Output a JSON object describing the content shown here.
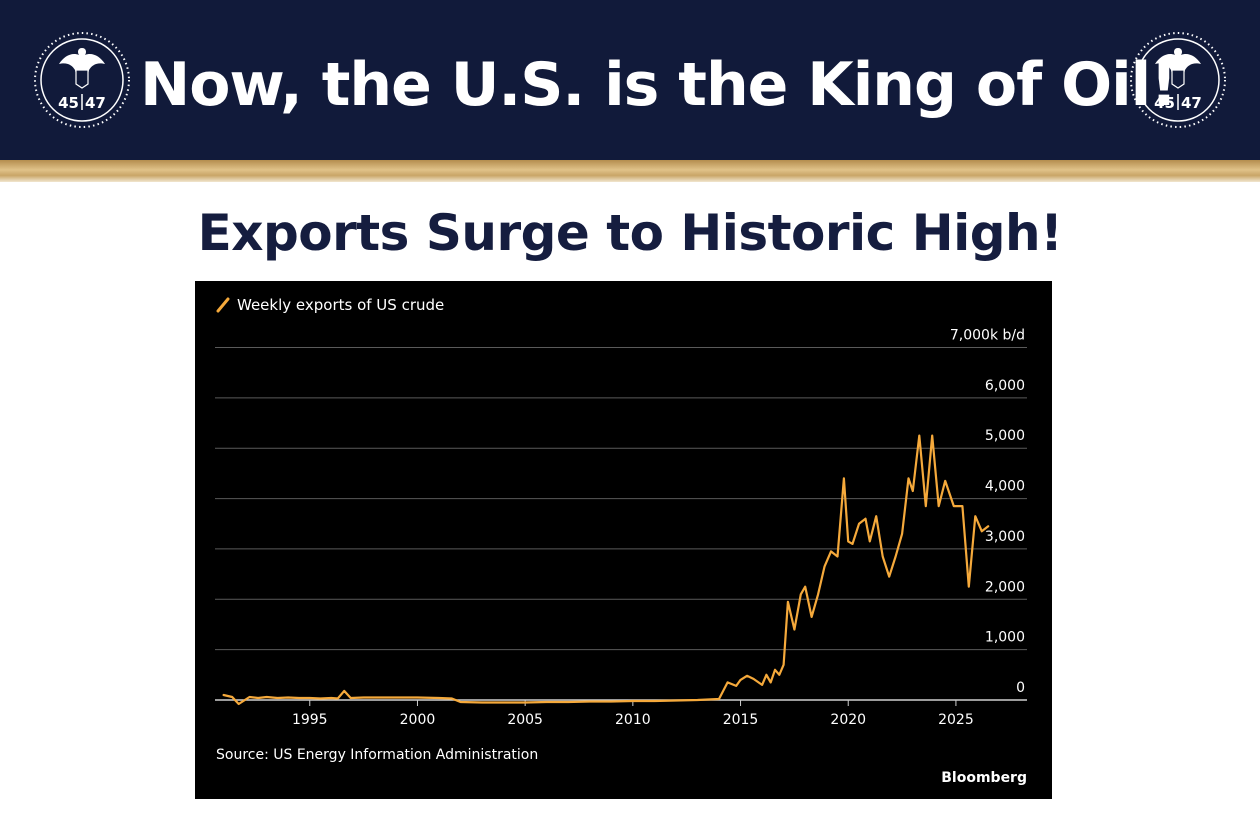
{
  "banner": {
    "headline": "Now, the U.S. is the King of Oil!",
    "seal_text_left": "45",
    "seal_text_right": "47"
  },
  "subheadline": "Exports Surge to Historic High!",
  "colors": {
    "banner_bg": "#111a3a",
    "gold": "#c9a567",
    "line": "#f5a93b",
    "chart_bg": "#000000",
    "gridline": "#5a5a5a"
  },
  "chart_data": {
    "type": "line",
    "title": "",
    "xlabel": "",
    "ylabel": "",
    "legend": "Weekly exports of US crude",
    "legend_position": "top-left",
    "unit_label": "7,000k b/d",
    "y_tick_labels": [
      "0",
      "1,000",
      "2,000",
      "3,000",
      "4,000",
      "5,000",
      "6,000",
      "7,000k b/d"
    ],
    "y_ticks": [
      0,
      1000,
      2000,
      3000,
      4000,
      5000,
      6000,
      7000
    ],
    "x_tick_labels": [
      "1995",
      "2000",
      "2005",
      "2010",
      "2015",
      "2020",
      "2025"
    ],
    "x_ticks": [
      1995,
      2000,
      2005,
      2010,
      2015,
      2020,
      2025
    ],
    "xlim": [
      1990.6,
      2028.3
    ],
    "ylim": [
      0,
      7000
    ],
    "grid": true,
    "source": "Source: US Energy Information Administration",
    "brand": "Bloomberg",
    "series": [
      {
        "name": "Weekly exports of US crude",
        "x": [
          1991.0,
          1991.4,
          1991.7,
          1992.2,
          1992.6,
          1993.0,
          1993.5,
          1994.0,
          1994.5,
          1995.0,
          1995.5,
          1996.0,
          1996.3,
          1996.6,
          1996.9,
          1997.5,
          1998.0,
          1999.0,
          2000.0,
          2001.0,
          2001.6,
          2002.0,
          2003.0,
          2004.0,
          2005.0,
          2006.0,
          2007.0,
          2008.0,
          2009.0,
          2010.0,
          2011.0,
          2012.0,
          2013.0,
          2013.5,
          2014.0,
          2014.4,
          2014.8,
          2015.0,
          2015.3,
          2015.6,
          2016.0,
          2016.2,
          2016.4,
          2016.6,
          2016.8,
          2017.0,
          2017.2,
          2017.5,
          2017.8,
          2018.0,
          2018.3,
          2018.6,
          2018.9,
          2019.2,
          2019.5,
          2019.8,
          2020.0,
          2020.2,
          2020.5,
          2020.8,
          2021.0,
          2021.3,
          2021.6,
          2021.9,
          2022.2,
          2022.5,
          2022.8,
          2023.0,
          2023.3,
          2023.6,
          2023.9,
          2024.2,
          2024.5,
          2024.9,
          2025.3,
          2025.6,
          2025.9,
          2026.2,
          2026.5
        ],
        "values": [
          100,
          60,
          -80,
          60,
          40,
          60,
          40,
          50,
          40,
          40,
          30,
          40,
          30,
          180,
          40,
          50,
          50,
          50,
          50,
          40,
          30,
          -40,
          -50,
          -50,
          -50,
          -40,
          -40,
          -30,
          -30,
          -20,
          -20,
          -10,
          0,
          10,
          20,
          350,
          280,
          400,
          480,
          420,
          300,
          500,
          350,
          600,
          500,
          700,
          1950,
          1400,
          2100,
          2250,
          1650,
          2100,
          2650,
          2950,
          2850,
          4400,
          3150,
          3100,
          3500,
          3600,
          3150,
          3650,
          2850,
          2450,
          2850,
          3300,
          4400,
          4150,
          5250,
          3850,
          5250,
          3850,
          4350,
          3850,
          3850,
          2250,
          3650,
          3350,
          3450
        ]
      }
    ]
  }
}
